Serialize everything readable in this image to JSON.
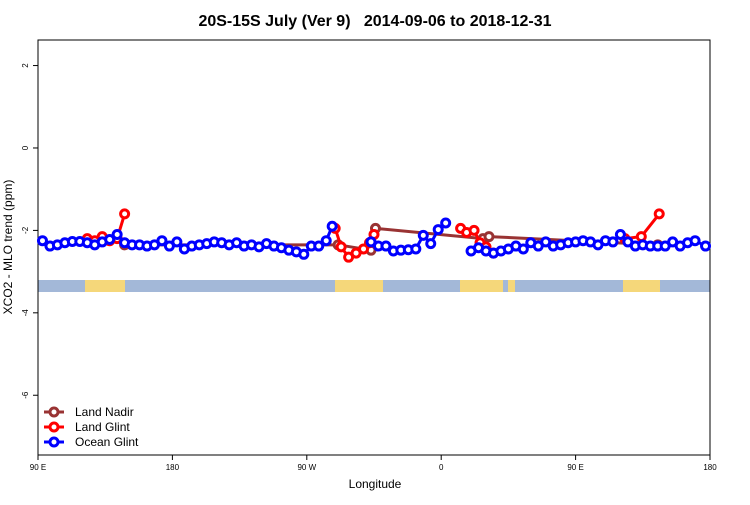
{
  "chart_data": {
    "type": "line",
    "title": "20S-15S July (Ver 9)   2014-09-06 to 2018-12-31",
    "xlabel": "Longitude",
    "ylabel": "XCO2 - MLO trend (ppm)",
    "xlim": [
      90,
      540
    ],
    "xticks": [
      {
        "value": 90,
        "label": "90 E"
      },
      {
        "value": 180,
        "label": "180"
      },
      {
        "value": 270,
        "label": "90 W"
      },
      {
        "value": 360,
        "label": "0"
      },
      {
        "value": 450,
        "label": "90 E"
      },
      {
        "value": 540,
        "label": "180"
      }
    ],
    "ylim": [
      -7.45,
      2.62
    ],
    "yticks": [
      -6,
      -4,
      -2,
      0,
      2
    ],
    "legend": "bottom-left",
    "series": [
      {
        "name": "Land Nadir",
        "color": "#993333",
        "x": [
          148,
          291,
          313,
          316,
          388,
          392,
          505
        ],
        "values": [
          -2.35,
          -2.35,
          -2.48,
          -1.95,
          -2.2,
          -2.15,
          -2.35
        ]
      },
      {
        "name": "Land Glint",
        "color": "#ff0000",
        "x": [
          123,
          128,
          133,
          138,
          143,
          148,
          null,
          289,
          293,
          298,
          303,
          308,
          312,
          315,
          null,
          373,
          377,
          382,
          386,
          390,
          395,
          null,
          483,
          494,
          506
        ],
        "values": [
          -2.2,
          -2.25,
          -2.15,
          -2.25,
          -2.2,
          -1.6,
          null,
          -1.95,
          -2.4,
          -2.65,
          -2.55,
          -2.45,
          -2.3,
          -2.1,
          null,
          -1.95,
          -2.05,
          -2.0,
          -2.3,
          -2.4,
          -2.55,
          null,
          -2.2,
          -2.15,
          -1.6
        ]
      },
      {
        "name": "Ocean Glint",
        "color": "#0000ff",
        "x": [
          93,
          98,
          103,
          108,
          113,
          118,
          123,
          128,
          133,
          138,
          143,
          148,
          153,
          158,
          163,
          168,
          173,
          178,
          183,
          188,
          193,
          198,
          203,
          208,
          213,
          218,
          223,
          228,
          233,
          238,
          243,
          248,
          253,
          258,
          263,
          268,
          273,
          278,
          283,
          287,
          null,
          313,
          318,
          323,
          328,
          333,
          338,
          343,
          348,
          353,
          358,
          363,
          null,
          380,
          385,
          390,
          395,
          400,
          405,
          410,
          415,
          420,
          425,
          430,
          435,
          440,
          445,
          450,
          455,
          460,
          465,
          470,
          475,
          480,
          485,
          490,
          495,
          500,
          505,
          510,
          515,
          520,
          525,
          530,
          537
        ],
        "values": [
          -2.25,
          -2.38,
          -2.35,
          -2.3,
          -2.27,
          -2.27,
          -2.3,
          -2.35,
          -2.28,
          -2.22,
          -2.1,
          -2.3,
          -2.35,
          -2.35,
          -2.38,
          -2.35,
          -2.25,
          -2.38,
          -2.28,
          -2.45,
          -2.38,
          -2.35,
          -2.32,
          -2.28,
          -2.3,
          -2.35,
          -2.3,
          -2.38,
          -2.35,
          -2.4,
          -2.32,
          -2.38,
          -2.42,
          -2.48,
          -2.52,
          -2.58,
          -2.38,
          -2.38,
          -2.25,
          -1.9,
          null,
          -2.28,
          -2.38,
          -2.38,
          -2.5,
          -2.48,
          -2.47,
          -2.45,
          -2.12,
          -2.32,
          -1.98,
          -1.82,
          null,
          -2.5,
          -2.42,
          -2.5,
          -2.55,
          -2.5,
          -2.45,
          -2.38,
          -2.45,
          -2.3,
          -2.38,
          -2.28,
          -2.38,
          -2.35,
          -2.3,
          -2.28,
          -2.25,
          -2.28,
          -2.35,
          -2.25,
          -2.28,
          -2.1,
          -2.28,
          -2.38,
          -2.35,
          -2.38,
          -2.38,
          -2.38,
          -2.28,
          -2.38,
          -2.3,
          -2.25,
          -2.38
        ]
      }
    ]
  }
}
